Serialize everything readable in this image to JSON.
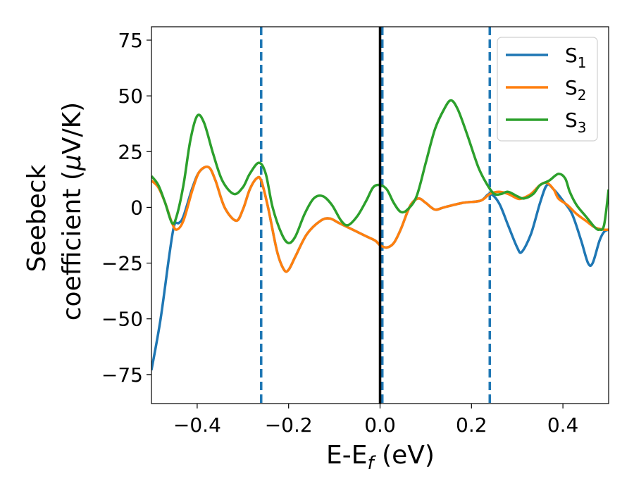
{
  "chart_data": {
    "type": "line",
    "xlabel": {
      "main": "E-E",
      "sub": "f",
      "tail": " (eV)"
    },
    "ylabel": {
      "line1": "Seebeck",
      "line2_prefix": "coefficient  (",
      "mu": "μ",
      "line2_suffix": "V/K)"
    },
    "xlim": [
      -0.5,
      0.5
    ],
    "ylim": [
      -88,
      81
    ],
    "xticks": [
      -0.4,
      -0.2,
      0.0,
      0.2,
      0.4
    ],
    "xtick_labels": [
      "−0.4",
      "−0.2",
      "0.0",
      "0.2",
      "0.4"
    ],
    "yticks": [
      75,
      50,
      25,
      0,
      -25,
      -50,
      -75
    ],
    "ytick_labels": [
      "75",
      "50",
      "25",
      "0",
      "−25",
      "−50",
      "−75"
    ],
    "grid": false,
    "legend_position": "top-right",
    "vlines": [
      {
        "x": -0.26,
        "style": "dashed",
        "color": "#1f77b4"
      },
      {
        "x": 0.005,
        "style": "dashed",
        "color": "#1f77b4"
      },
      {
        "x": 0.24,
        "style": "dashed",
        "color": "#1f77b4"
      },
      {
        "x": 0.0,
        "style": "solid",
        "color": "#000000"
      }
    ],
    "series": [
      {
        "name": "S",
        "subscript": "1",
        "color": "#1f77b4",
        "points": [
          [
            -0.5,
            -73
          ],
          [
            -0.48,
            -50
          ],
          [
            -0.46,
            -20
          ],
          [
            -0.45,
            -8
          ],
          [
            -0.44,
            -7
          ],
          [
            -0.43,
            -4
          ],
          [
            -0.41,
            9
          ],
          [
            -0.395,
            16
          ],
          [
            -0.375,
            18
          ],
          [
            -0.36,
            12
          ],
          [
            -0.34,
            0
          ],
          [
            -0.315,
            -6
          ],
          [
            -0.3,
            -1
          ],
          [
            -0.285,
            8
          ],
          [
            -0.27,
            13
          ],
          [
            -0.26,
            12
          ],
          [
            -0.245,
            0
          ],
          [
            -0.225,
            -20
          ],
          [
            -0.21,
            -28
          ],
          [
            -0.2,
            -28
          ],
          [
            -0.185,
            -22
          ],
          [
            -0.16,
            -12
          ],
          [
            -0.13,
            -6
          ],
          [
            -0.11,
            -5
          ],
          [
            -0.09,
            -7
          ],
          [
            -0.06,
            -10
          ],
          [
            -0.03,
            -13
          ],
          [
            -0.01,
            -15
          ],
          [
            0.0,
            -17
          ],
          [
            0.015,
            -18
          ],
          [
            0.03,
            -16
          ],
          [
            0.045,
            -10
          ],
          [
            0.06,
            -2
          ],
          [
            0.07,
            2
          ],
          [
            0.085,
            4
          ],
          [
            0.1,
            2
          ],
          [
            0.12,
            -1
          ],
          [
            0.14,
            0
          ],
          [
            0.18,
            2
          ],
          [
            0.22,
            3
          ],
          [
            0.24,
            6
          ],
          [
            0.26,
            2
          ],
          [
            0.28,
            -8
          ],
          [
            0.3,
            -18
          ],
          [
            0.31,
            -20
          ],
          [
            0.33,
            -12
          ],
          [
            0.35,
            2
          ],
          [
            0.365,
            10
          ],
          [
            0.38,
            8
          ],
          [
            0.4,
            3
          ],
          [
            0.42,
            -3
          ],
          [
            0.44,
            -15
          ],
          [
            0.455,
            -25
          ],
          [
            0.465,
            -25
          ],
          [
            0.48,
            -15
          ],
          [
            0.49,
            -11
          ],
          [
            0.5,
            -10
          ]
        ]
      },
      {
        "name": "S",
        "subscript": "2",
        "color": "#ff7f0e",
        "points": [
          [
            -0.5,
            12
          ],
          [
            -0.485,
            9
          ],
          [
            -0.47,
            2
          ],
          [
            -0.455,
            -7
          ],
          [
            -0.445,
            -10
          ],
          [
            -0.43,
            -6
          ],
          [
            -0.41,
            8
          ],
          [
            -0.395,
            16
          ],
          [
            -0.375,
            18
          ],
          [
            -0.36,
            12
          ],
          [
            -0.34,
            0
          ],
          [
            -0.315,
            -6
          ],
          [
            -0.3,
            -1
          ],
          [
            -0.285,
            8
          ],
          [
            -0.27,
            13
          ],
          [
            -0.26,
            12
          ],
          [
            -0.245,
            0
          ],
          [
            -0.225,
            -20
          ],
          [
            -0.21,
            -28
          ],
          [
            -0.2,
            -28
          ],
          [
            -0.185,
            -22
          ],
          [
            -0.16,
            -12
          ],
          [
            -0.13,
            -6
          ],
          [
            -0.11,
            -5
          ],
          [
            -0.09,
            -7
          ],
          [
            -0.06,
            -10
          ],
          [
            -0.03,
            -13
          ],
          [
            -0.01,
            -15
          ],
          [
            0.0,
            -17
          ],
          [
            0.015,
            -18
          ],
          [
            0.03,
            -16
          ],
          [
            0.045,
            -10
          ],
          [
            0.06,
            -2
          ],
          [
            0.07,
            2
          ],
          [
            0.085,
            4
          ],
          [
            0.1,
            2
          ],
          [
            0.12,
            -1
          ],
          [
            0.14,
            0
          ],
          [
            0.18,
            2
          ],
          [
            0.22,
            3
          ],
          [
            0.24,
            6
          ],
          [
            0.26,
            7
          ],
          [
            0.28,
            6
          ],
          [
            0.3,
            4
          ],
          [
            0.31,
            4
          ],
          [
            0.33,
            6
          ],
          [
            0.35,
            10
          ],
          [
            0.365,
            11
          ],
          [
            0.38,
            8
          ],
          [
            0.39,
            4
          ],
          [
            0.41,
            1
          ],
          [
            0.43,
            -3
          ],
          [
            0.45,
            -6
          ],
          [
            0.47,
            -9
          ],
          [
            0.49,
            -10
          ],
          [
            0.5,
            -10
          ]
        ]
      },
      {
        "name": "S",
        "subscript": "3",
        "color": "#2ca02c",
        "points": [
          [
            -0.5,
            14
          ],
          [
            -0.485,
            10
          ],
          [
            -0.47,
            2
          ],
          [
            -0.455,
            -7
          ],
          [
            -0.445,
            -4
          ],
          [
            -0.43,
            10
          ],
          [
            -0.415,
            30
          ],
          [
            -0.4,
            41
          ],
          [
            -0.385,
            38
          ],
          [
            -0.365,
            24
          ],
          [
            -0.345,
            12
          ],
          [
            -0.32,
            6
          ],
          [
            -0.3,
            9
          ],
          [
            -0.285,
            15
          ],
          [
            -0.265,
            20
          ],
          [
            -0.25,
            15
          ],
          [
            -0.235,
            0
          ],
          [
            -0.215,
            -12
          ],
          [
            -0.2,
            -16
          ],
          [
            -0.185,
            -13
          ],
          [
            -0.165,
            -3
          ],
          [
            -0.145,
            4
          ],
          [
            -0.125,
            5
          ],
          [
            -0.105,
            1
          ],
          [
            -0.085,
            -6
          ],
          [
            -0.07,
            -8
          ],
          [
            -0.05,
            -4
          ],
          [
            -0.03,
            3
          ],
          [
            -0.015,
            9
          ],
          [
            0.0,
            10
          ],
          [
            0.015,
            8
          ],
          [
            0.03,
            2
          ],
          [
            0.045,
            -2
          ],
          [
            0.06,
            -1
          ],
          [
            0.08,
            5
          ],
          [
            0.1,
            20
          ],
          [
            0.12,
            35
          ],
          [
            0.14,
            44
          ],
          [
            0.155,
            48
          ],
          [
            0.17,
            44
          ],
          [
            0.19,
            33
          ],
          [
            0.215,
            18
          ],
          [
            0.235,
            10
          ],
          [
            0.25,
            6
          ],
          [
            0.265,
            6
          ],
          [
            0.28,
            7
          ],
          [
            0.3,
            5
          ],
          [
            0.315,
            4
          ],
          [
            0.335,
            6
          ],
          [
            0.35,
            10
          ],
          [
            0.37,
            12
          ],
          [
            0.39,
            15
          ],
          [
            0.405,
            13
          ],
          [
            0.415,
            7
          ],
          [
            0.43,
            1
          ],
          [
            0.45,
            -4
          ],
          [
            0.47,
            -9
          ],
          [
            0.48,
            -10
          ],
          [
            0.49,
            -8
          ],
          [
            0.5,
            8
          ]
        ]
      }
    ]
  }
}
